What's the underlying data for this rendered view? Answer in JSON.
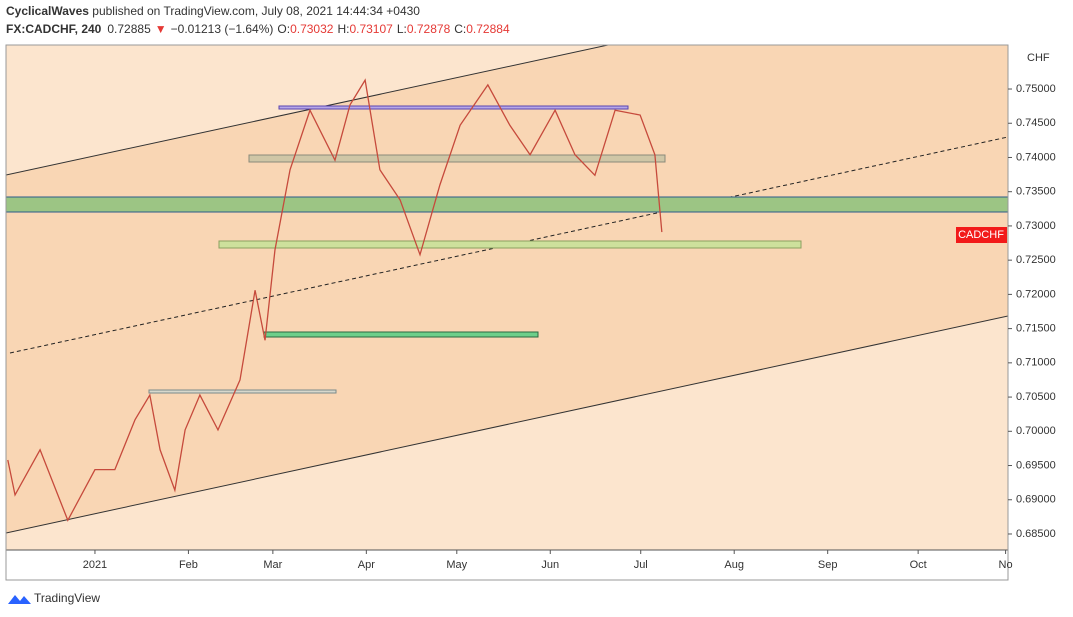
{
  "chart_data": {
    "type": "line",
    "header": {
      "author": "CyclicalWaves",
      "published": " published on TradingView.com, July 08, 2021 14:44:34 +0430",
      "symbol": "FX:CADCHF, 240",
      "price": "0.72885",
      "arrow": "▼",
      "change": "−0.01213 (−1.64%)",
      "open_label": "O:",
      "open": "0.73032",
      "high_label": "H:",
      "high": "0.73107",
      "low_label": "L:",
      "low": "0.72878",
      "close_label": "C:",
      "close": "0.72884"
    },
    "currency": "CHF",
    "tag": "CADCHF",
    "brand": "TradingView",
    "x": [
      -28.9,
      -26.5,
      -18.2,
      -9.0,
      0,
      6.6,
      13.3,
      18.2,
      21.6,
      26.5,
      29.9,
      34.8,
      40.8,
      48.1,
      53.1,
      56.4,
      59.7,
      64.7,
      71.3,
      79.6,
      84.6,
      89.6,
      94.5,
      101.2,
      107.8,
      114.4,
      121.1,
      130.3,
      137.6,
      144.3,
      152.6,
      159.2,
      165.8,
      172.5,
      180.8,
      185.7,
      188.0
    ],
    "series": [
      {
        "name": "CADCHF",
        "color": "#c64a3c",
        "values": [
          0.6958,
          0.6907,
          0.6973,
          0.687,
          0.6944,
          0.6944,
          0.7017,
          0.7053,
          0.6973,
          0.6914,
          0.7002,
          0.7053,
          0.7002,
          0.7075,
          0.7206,
          0.7133,
          0.7265,
          0.7382,
          0.7469,
          0.7396,
          0.7477,
          0.7513,
          0.7382,
          0.7338,
          0.7258,
          0.736,
          0.7447,
          0.7506,
          0.7447,
          0.7404,
          0.7469,
          0.7404,
          0.7374,
          0.7469,
          0.7462,
          0.7404,
          0.7291
        ]
      }
    ],
    "xlim": [
      -29.5,
      302.8
    ],
    "xticks": [
      {
        "value": 0,
        "label": "2021"
      },
      {
        "value": 31,
        "label": "Feb"
      },
      {
        "value": 59,
        "label": "Mar"
      },
      {
        "value": 90,
        "label": "Apr"
      },
      {
        "value": 120,
        "label": "May"
      },
      {
        "value": 151,
        "label": "Jun"
      },
      {
        "value": 181,
        "label": "Jul"
      },
      {
        "value": 212,
        "label": "Aug"
      },
      {
        "value": 243,
        "label": "Sep"
      },
      {
        "value": 273,
        "label": "Oct"
      },
      {
        "value": 302,
        "label": "No"
      }
    ],
    "ylim": [
      0.68266,
      0.75643
    ],
    "yticks": [
      {
        "value": 0.685,
        "label": "0.68500"
      },
      {
        "value": 0.69,
        "label": "0.69000"
      },
      {
        "value": 0.695,
        "label": "0.69500"
      },
      {
        "value": 0.7,
        "label": "0.70000"
      },
      {
        "value": 0.705,
        "label": "0.70500"
      },
      {
        "value": 0.71,
        "label": "0.71000"
      },
      {
        "value": 0.715,
        "label": "0.71500"
      },
      {
        "value": 0.72,
        "label": "0.72000"
      },
      {
        "value": 0.725,
        "label": "0.72500"
      },
      {
        "value": 0.73,
        "label": "0.73000"
      },
      {
        "value": 0.735,
        "label": "0.73500"
      },
      {
        "value": 0.74,
        "label": "0.74000"
      },
      {
        "value": 0.745,
        "label": "0.74500"
      },
      {
        "value": 0.75,
        "label": "0.75000"
      }
    ]
  }
}
